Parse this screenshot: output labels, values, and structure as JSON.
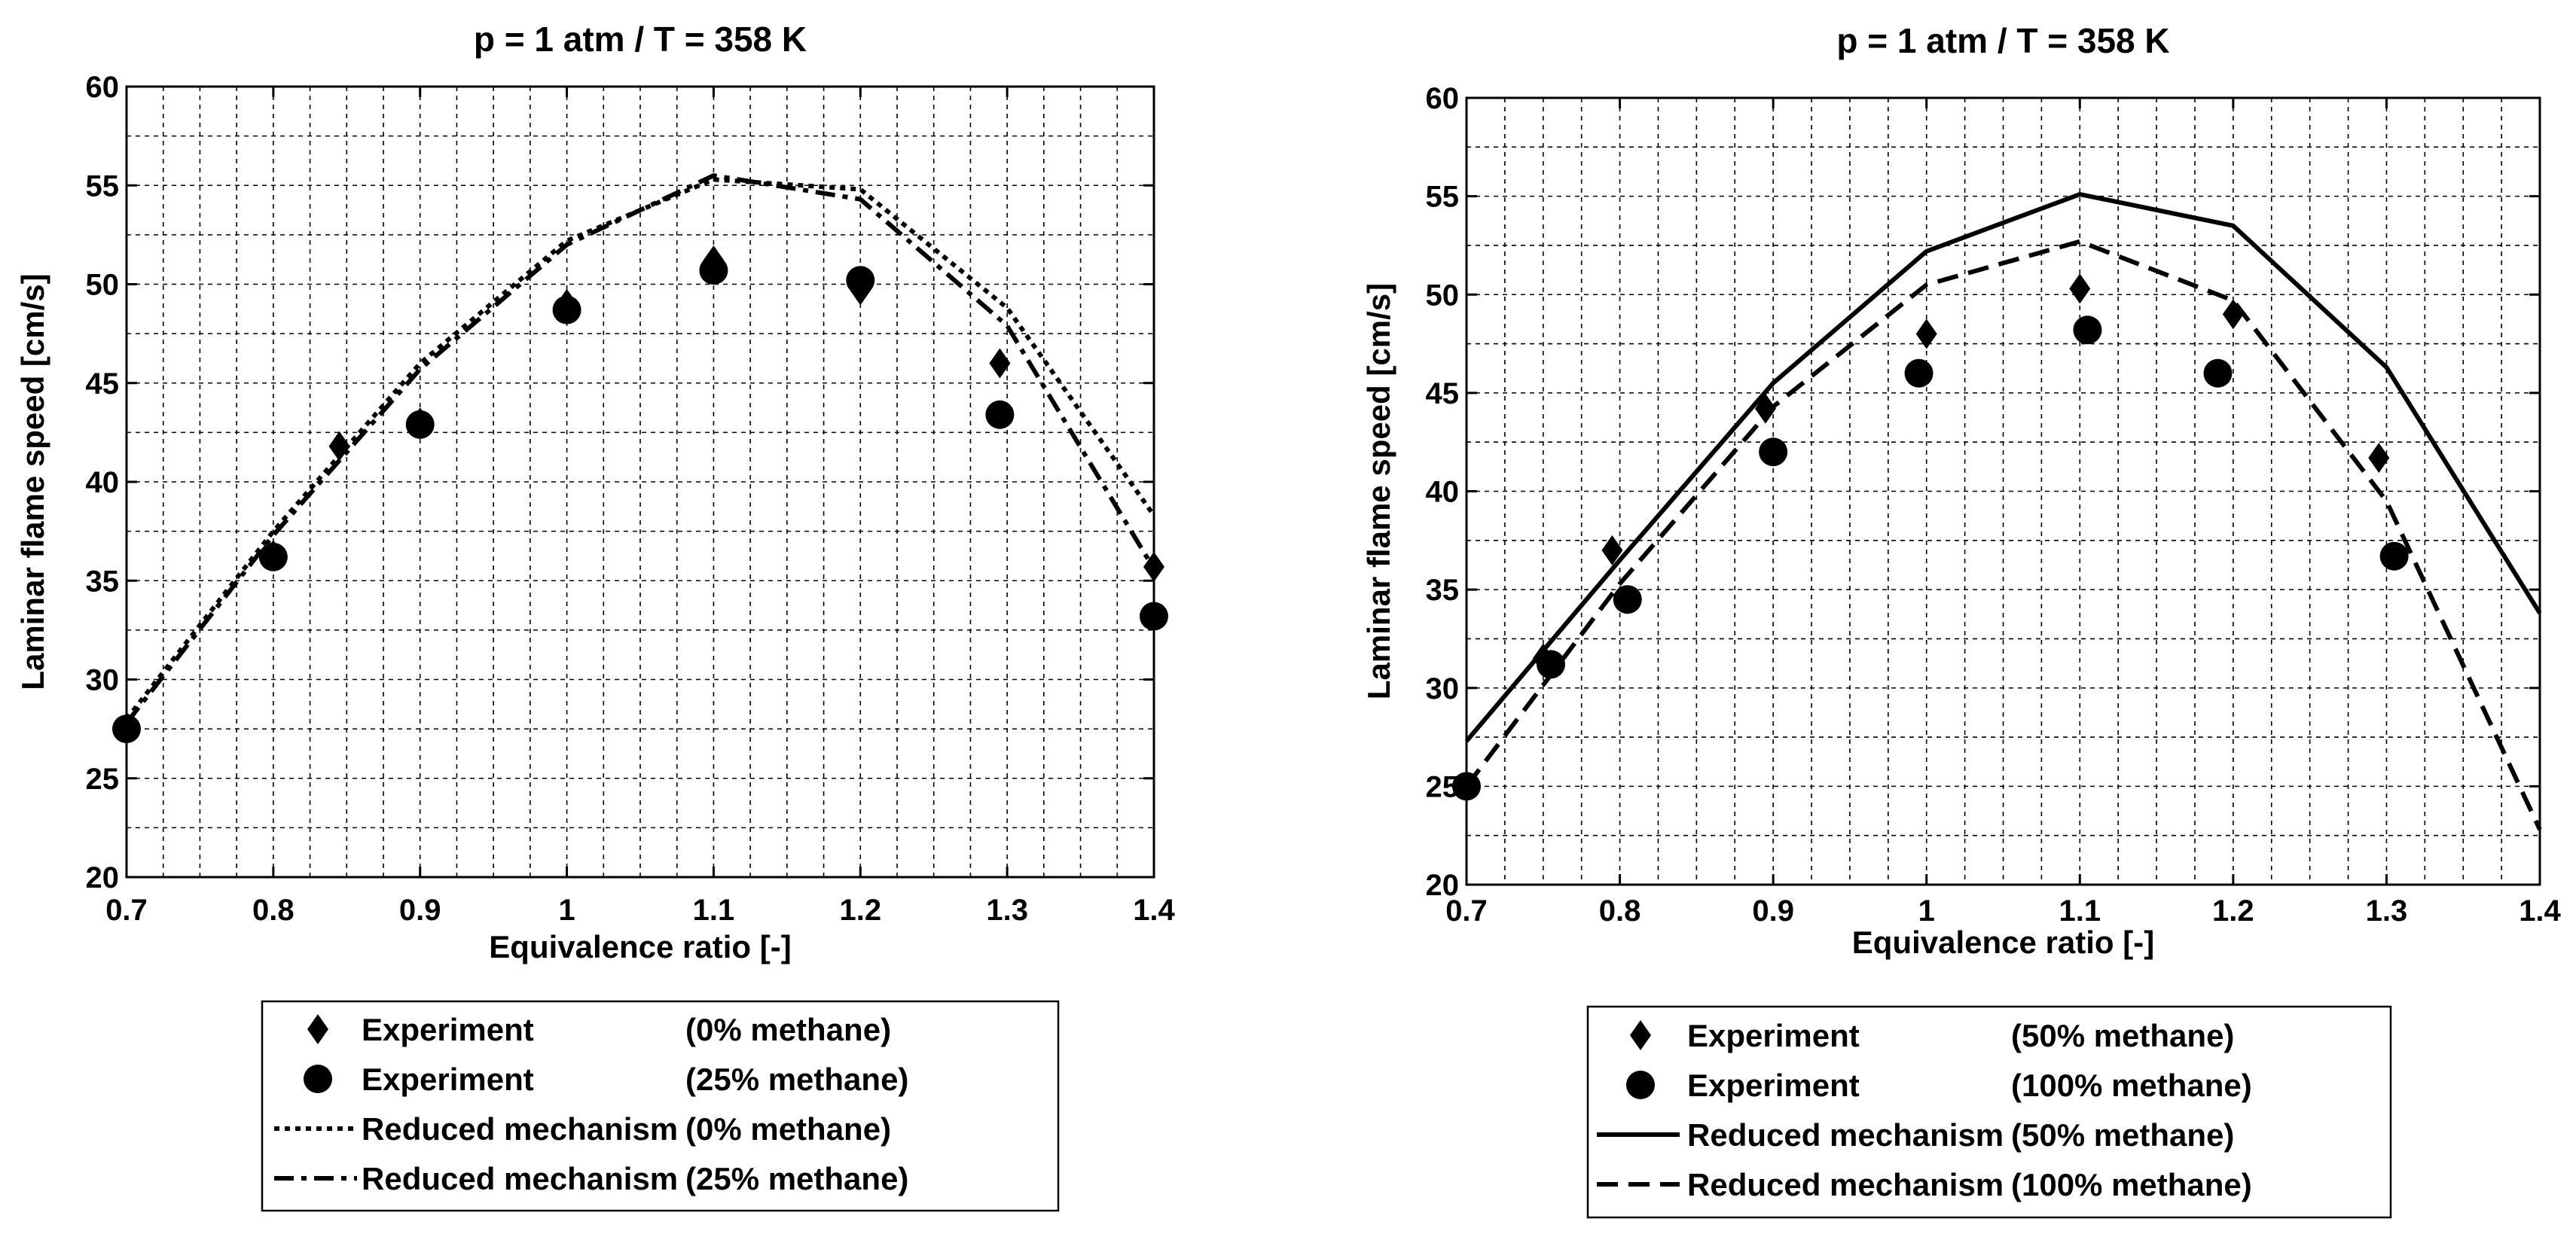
{
  "chart_data": [
    {
      "type": "line",
      "title": "p = 1 atm / T = 358 K",
      "xlabel": "Equivalence ratio [-]",
      "ylabel": "Laminar flame speed [cm/s]",
      "xlim": [
        0.7,
        1.4
      ],
      "ylim": [
        20,
        60
      ],
      "xticks": [
        "0.7",
        "0.8",
        "0.9",
        "1",
        "1.1",
        "1.2",
        "1.3",
        "1.4"
      ],
      "yticks": [
        "20",
        "25",
        "30",
        "35",
        "40",
        "45",
        "50",
        "55",
        "60"
      ],
      "xtick_values": [
        0.7,
        0.8,
        0.9,
        1.0,
        1.1,
        1.2,
        1.3,
        1.4
      ],
      "ytick_values": [
        20,
        25,
        30,
        35,
        40,
        45,
        50,
        55,
        60
      ],
      "grid": true,
      "legend_position": "below",
      "series": [
        {
          "name": "Experiment",
          "composition": "(0% methane)",
          "kind": "marker",
          "marker": "diamond",
          "x": [
            0.7,
            0.8,
            0.845,
            0.9,
            1.0,
            1.1,
            1.2,
            1.295,
            1.4
          ],
          "y": [
            27.5,
            36.3,
            41.8,
            43.0,
            49.0,
            51.2,
            49.7,
            46.0,
            35.7
          ]
        },
        {
          "name": "Experiment",
          "composition": "(25% methane)",
          "kind": "marker",
          "marker": "circle",
          "x": [
            0.7,
            0.8,
            0.9,
            1.0,
            1.1,
            1.2,
            1.295,
            1.4
          ],
          "y": [
            27.5,
            36.2,
            42.9,
            48.7,
            50.7,
            50.2,
            43.4,
            33.2
          ]
        },
        {
          "name": "Reduced mechanism",
          "composition": "(0% methane)",
          "kind": "line",
          "dash": "dotted",
          "x": [
            0.7,
            0.8,
            0.9,
            1.0,
            1.1,
            1.2,
            1.3,
            1.4
          ],
          "y": [
            28.0,
            37.5,
            46.0,
            52.2,
            55.3,
            54.8,
            48.8,
            38.3
          ]
        },
        {
          "name": "Reduced mechanism",
          "composition": "(25% methane)",
          "kind": "line",
          "dash": "dashdot",
          "x": [
            0.7,
            0.8,
            0.9,
            1.0,
            1.1,
            1.2,
            1.3,
            1.4
          ],
          "y": [
            27.8,
            37.3,
            45.7,
            52.0,
            55.5,
            54.3,
            47.9,
            35.6
          ]
        }
      ]
    },
    {
      "type": "line",
      "title": "p = 1 atm / T = 358 K",
      "xlabel": "Equivalence ratio [-]",
      "ylabel": "Laminar flame speed [cm/s]",
      "xlim": [
        0.7,
        1.4
      ],
      "ylim": [
        20,
        60
      ],
      "xticks": [
        "0.7",
        "0.8",
        "0.9",
        "1",
        "1.1",
        "1.2",
        "1.3",
        "1.4"
      ],
      "yticks": [
        "20",
        "25",
        "30",
        "35",
        "40",
        "45",
        "50",
        "55",
        "60"
      ],
      "xtick_values": [
        0.7,
        0.8,
        0.9,
        1.0,
        1.1,
        1.2,
        1.3,
        1.4
      ],
      "ytick_values": [
        20,
        25,
        30,
        35,
        40,
        45,
        50,
        55,
        60
      ],
      "grid": true,
      "legend_position": "below",
      "series": [
        {
          "name": "Experiment",
          "composition": "(50% methane)",
          "kind": "marker",
          "marker": "diamond",
          "x": [
            0.75,
            0.795,
            0.895,
            1.0,
            1.1,
            1.2,
            1.295
          ],
          "y": [
            31.5,
            37.0,
            44.2,
            48.0,
            50.3,
            49.0,
            41.7
          ]
        },
        {
          "name": "Experiment",
          "composition": "(100% methane)",
          "kind": "marker",
          "marker": "circle",
          "x": [
            0.7,
            0.755,
            0.805,
            0.9,
            0.995,
            1.105,
            1.19,
            1.305
          ],
          "y": [
            25.0,
            31.2,
            34.5,
            42.0,
            46.0,
            48.2,
            46.0,
            36.7
          ]
        },
        {
          "name": "Reduced mechanism",
          "composition": "(50% methane)",
          "kind": "line",
          "dash": "solid",
          "x": [
            0.7,
            0.8,
            0.9,
            1.0,
            1.1,
            1.2,
            1.3,
            1.4
          ],
          "y": [
            27.3,
            36.5,
            45.5,
            52.2,
            55.1,
            53.5,
            46.3,
            33.8
          ]
        },
        {
          "name": "Reduced mechanism",
          "composition": "(100% methane)",
          "kind": "line",
          "dash": "dashed",
          "x": [
            0.7,
            0.8,
            0.9,
            1.0,
            1.1,
            1.2,
            1.3,
            1.4
          ],
          "y": [
            25.0,
            35.3,
            44.3,
            50.5,
            52.7,
            49.7,
            39.5,
            22.8
          ]
        }
      ]
    }
  ]
}
